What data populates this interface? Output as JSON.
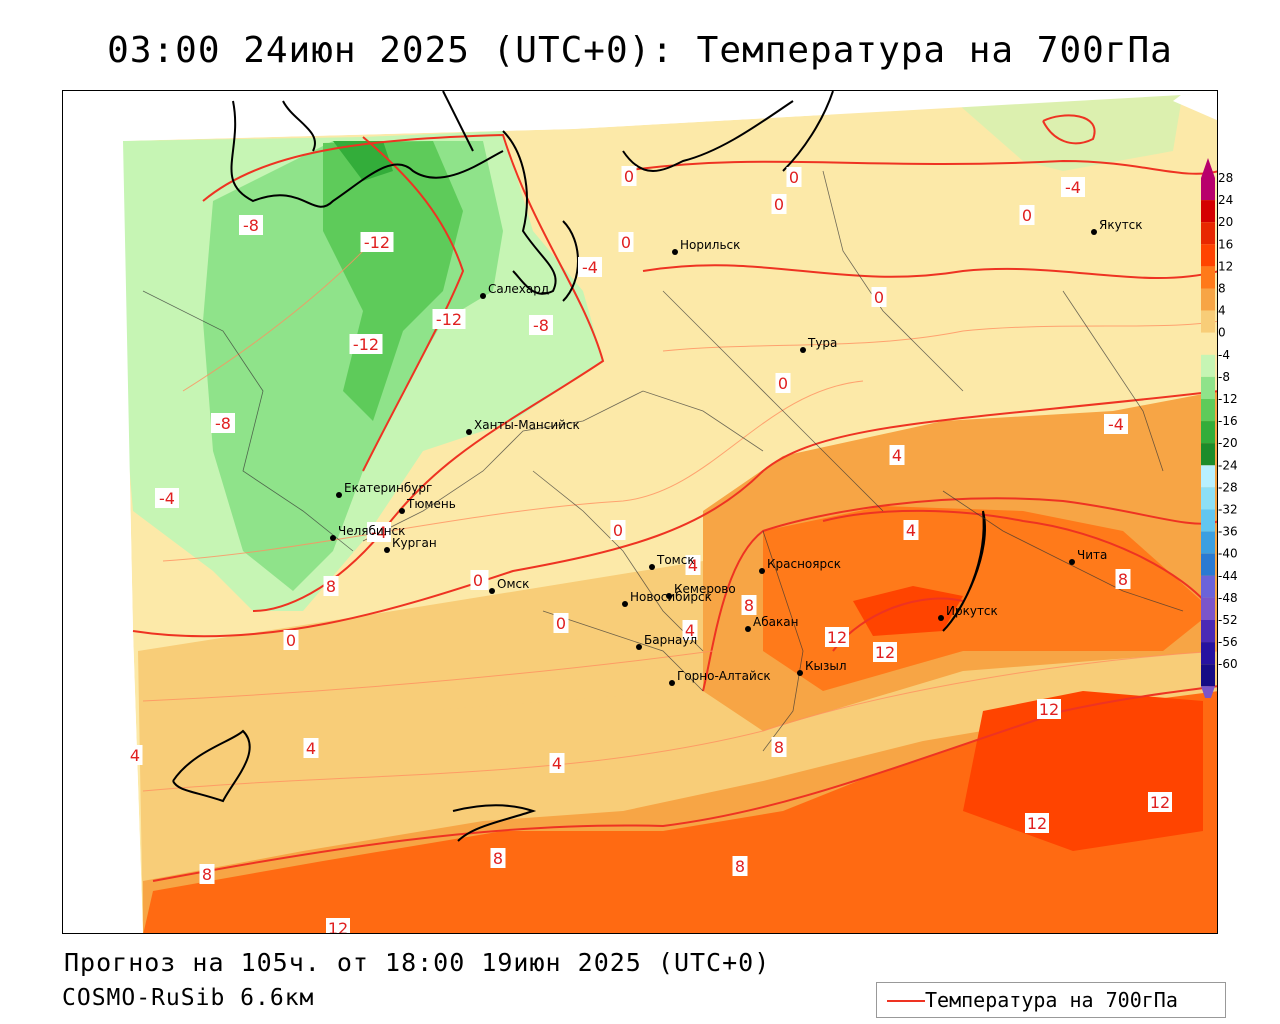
{
  "title": "03:00 24июн 2025 (UTC+0): Температура на 700гПа",
  "footer": {
    "forecast": "Прогноз на 105ч. от 18:00 19июн 2025 (UTC+0)",
    "model": "COSMO-RuSib 6.6км"
  },
  "legend": {
    "label": "Температура на 700гПа",
    "line_color": "#ee3322"
  },
  "colorbar": {
    "ticks": [
      "28",
      "24",
      "20",
      "16",
      "12",
      "8",
      "4",
      "0",
      "-4",
      "-8",
      "-12",
      "-16",
      "-20",
      "-24",
      "-28",
      "-32",
      "-36",
      "-40",
      "-44",
      "-48",
      "-52",
      "-56",
      "-60"
    ],
    "colors": [
      "#b8006c",
      "#d40000",
      "#e82800",
      "#ff4400",
      "#ff7a1a",
      "#f7a545",
      "#f8cd78",
      "#fce9a8",
      "#c6f5b4",
      "#8fe38a",
      "#5ecb5a",
      "#33ad3a",
      "#1c8c2a",
      "#b8f0ff",
      "#8ddff5",
      "#62c6ef",
      "#3c9fe0",
      "#2a7ad2",
      "#6b63d9",
      "#7b55c9",
      "#4a2ab5",
      "#2612a0",
      "#160c85"
    ]
  },
  "contour_labels": [
    "-8",
    "-12",
    "-12",
    "-12",
    "-8",
    "-8",
    "-4",
    "-4",
    "-4",
    "-4",
    "0",
    "0",
    "0",
    "0",
    "0",
    "0",
    "0",
    "0",
    "0",
    "0",
    "0",
    "0",
    "-4",
    "4",
    "4",
    "4",
    "4",
    "4",
    "4",
    "4",
    "8",
    "8",
    "8",
    "8",
    "8",
    "8",
    "8",
    "12",
    "12",
    "12",
    "12",
    "12",
    "12"
  ],
  "cities": [
    "Норильск",
    "Якутск",
    "Салехард",
    "Тура",
    "Ханты-Мансийск",
    "Екатеринбург",
    "Тюмень",
    "Челябинск",
    "Курган",
    "Омск",
    "Новосибирск",
    "Томск",
    "Кемерово",
    "Красноярск",
    "Абакан",
    "Барнаул",
    "Горно-Алтайск",
    "Кызыл",
    "Иркутск",
    "Чита"
  ]
}
